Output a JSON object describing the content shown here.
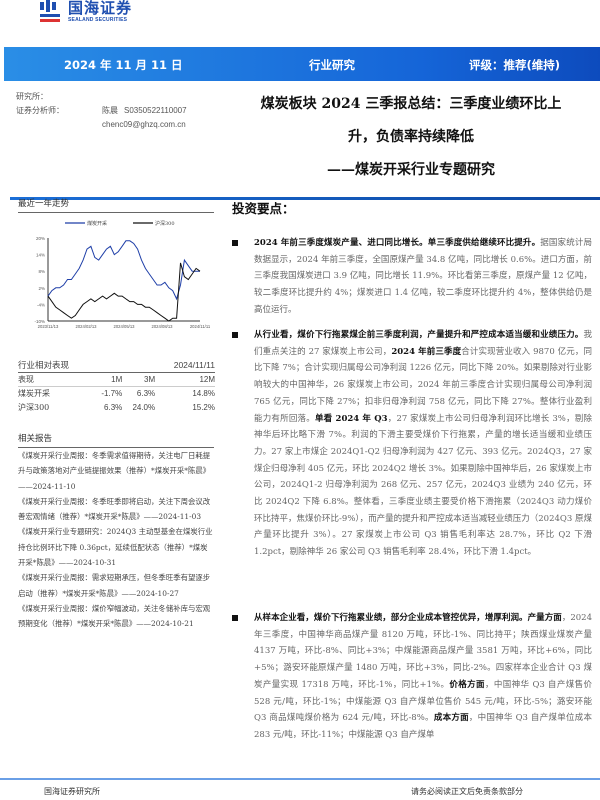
{
  "logo": {
    "cn": "国海证券",
    "en": "SEALAND SECURITIES"
  },
  "header": {
    "date": "2024 年 11 月 11 日",
    "category": "行业研究",
    "rating": "评级：推荐(维持)"
  },
  "meta": {
    "institute": "研究所：",
    "analyst_label": "证券分析师：",
    "analyst": "陈晨",
    "cert": "S0350522110007",
    "email": "chenc09@ghzq.com.cn"
  },
  "title": {
    "line1": "煤炭板块 2024 三季报总结：三季度业绩环比上",
    "line2": "升，负债率持续降低",
    "subtitle": "——煤炭开采行业专题研究"
  },
  "trend": {
    "heading": "最近一年走势"
  },
  "chart_data": {
    "type": "line",
    "legend_position": "top",
    "x_ticks": [
      "2023/11/13",
      "2024/02/13",
      "2024/05/13",
      "2024/08/13",
      "2024/11/11"
    ],
    "y_ticks": [
      "20%",
      "14%",
      "8%",
      "2%",
      "-4%",
      "-10%"
    ],
    "ylim": [
      -10,
      20
    ],
    "series": [
      {
        "name": "煤炭开采",
        "color": "#1f3fa8",
        "values": [
          -1,
          1,
          2,
          2,
          3,
          5,
          5,
          7,
          9,
          12,
          16,
          17,
          13,
          12,
          14,
          16,
          17,
          14,
          15,
          17,
          19,
          19,
          18,
          16,
          12,
          9,
          7,
          5,
          3,
          3,
          4,
          2,
          1,
          -2,
          3,
          12,
          10,
          8,
          8,
          8
        ]
      },
      {
        "name": "沪深300",
        "color": "#111111",
        "values": [
          -1,
          -3,
          -5,
          -6,
          -7,
          -8,
          -9,
          -8,
          -6,
          -4,
          -3,
          -2,
          -3,
          -2,
          -1,
          -2,
          -1,
          0,
          -1,
          -1,
          -2,
          -3,
          -3,
          -4,
          -4,
          -5,
          -5,
          -6,
          -7,
          -8,
          -9,
          -10,
          -9,
          -9,
          11,
          6,
          5,
          7,
          9,
          8
        ]
      }
    ]
  },
  "performance": {
    "heading": "行业相对表现",
    "date": "2024/11/11",
    "columns": [
      "表现",
      "1M",
      "3M",
      "12M"
    ],
    "rows": [
      [
        "煤炭开采",
        "-1.7%",
        "6.3%",
        "14.8%"
      ],
      [
        "沪深300",
        "6.3%",
        "24.0%",
        "15.2%"
      ]
    ]
  },
  "related": {
    "heading": "相关报告",
    "items": [
      "《煤炭开采行业周报：冬季需求值得期待，关注电厂日耗提升与政策落地对产业链提振效果（推荐）*煤炭开采*陈晨》——2024-11-10",
      "《煤炭开采行业周报：冬季旺季即将启动，关注下周会议改善宏观情绪（推荐）*煤炭开采*陈晨》——2024-11-03",
      "《煤炭开采行业专题研究：2024Q3 主动型基金在煤炭行业持仓比例环比下降 0.36pct，延续低配状态（推荐）*煤炭开采*陈晨》——2024-10-31",
      "《煤炭开采行业周报：需求短期承压，但冬季旺季有望逐步启动（推荐）*煤炭开采*陈晨》——2024-10-27",
      "《煤炭开采行业周报：煤价窄幅波动，关注冬储补库与宏观预期变化（推荐）*煤炭开采*陈晨》——2024-10-21"
    ]
  },
  "main": {
    "heading": "投资要点：",
    "bullets": [
      {
        "bold": "2024 年前三季度煤炭产量、进口同比增长。单三季度供给继续环比提升。",
        "text": "据国家统计局数据显示，2024 年前三季度，全国原煤产量 34.8 亿吨，同比增长 0.6%。进口方面，前三季度我国煤炭进口 3.9 亿吨，同比增长 11.9%。环比看第三季度，原煤产量 12 亿吨，较二季度环比提升约 4%；煤炭进口 1.4 亿吨，较二季度环比提升约 4%，整体供给仍是高位运行。"
      },
      {
        "bold": "从行业看，煤价下行拖累煤企前三季度利润，产量提升和严控成本适当缓和业绩压力。",
        "text": "我们重点关注的 27 家煤炭上市公司，",
        "bold2": "2024 年前三季度",
        "text2": "合计实现营业收入 9870 亿元，同比下降 7%；合计实现归属母公司净利润 1226 亿元，同比下降 20%。如果剔除对行业影响较大的中国神华，26 家煤炭上市公司，2024 年前三季度合计实现归属母公司净利润 765 亿元，同比下降 27%；扣非归母净利润 758 亿元，同比下降 27%。整体行业盈利能力有所回落。",
        "bold3": "单看 2024 年 Q3",
        "text3": "，27 家煤炭上市公司归母净利润环比增长 3%，剔除神华后环比略下滑 7%。利润的下滑主要受煤价下行拖累，产量的增长适当缓和业绩压力。27 家上市煤企 2024Q1-Q2 归母净利润为 427 亿元、393 亿元。2024Q3，27 家煤企归母净利 405 亿元，环比 2024Q2 增长 3%。如果剔除中国神华后，26 家煤炭上市公司，2024Q1-2 归母净利润为 268 亿元、257 亿元，2024Q3 业绩为 240 亿元，环比 2024Q2 下降 6.8%。整体看，三季度业绩主要受价格下滑拖累（2024Q3 动力煤价环比持平，焦煤价环比-9%），而产量的提升和严控成本适当减轻业绩压力（2024Q3 原煤产量环比提升 3%）。27 家煤炭上市公司 Q3 销售毛利率达 28.7%，环比 Q2 下滑 1.2pct，剔除神华 26 家公司 Q3 销售毛利率 28.4%，环比下滑 1.4pct。"
      },
      {
        "bold": "从样本企业看，煤价下行拖累业绩，部分企业成本管控优异，增厚利润。产量方面",
        "text": "，2024 年三季度，中国神华商品煤产量 8120 万吨，环比-1%、同比持平；陕西煤业煤炭产量 4137 万吨，环比-8%、同比+3%；中煤能源商品煤产量 3581 万吨，环比+6%，同比+5%；潞安环能原煤产量 1480 万吨，环比+3%，同比-2%。四家样本企业合计 Q3 煤炭产量实现 17318 万吨，环比-1%，同比+1%。",
        "bold2": "价格方面",
        "text2": "，中国神华 Q3 自产煤售价 528 元/吨，环比-1%；中煤能源 Q3 自产煤单位售价 545 元/吨，环比-5%；潞安环能 Q3 商品煤吨煤价格为 624 元/吨，环比-8%。",
        "bold3": "成本方面",
        "text3": "，中国神华 Q3 自产煤单位成本 283 元/吨，环比-11%；中煤能源 Q3 自产煤单"
      }
    ]
  },
  "footer": {
    "left": "国海证券研究所",
    "right": "请务必阅读正文后免责条款部分"
  }
}
